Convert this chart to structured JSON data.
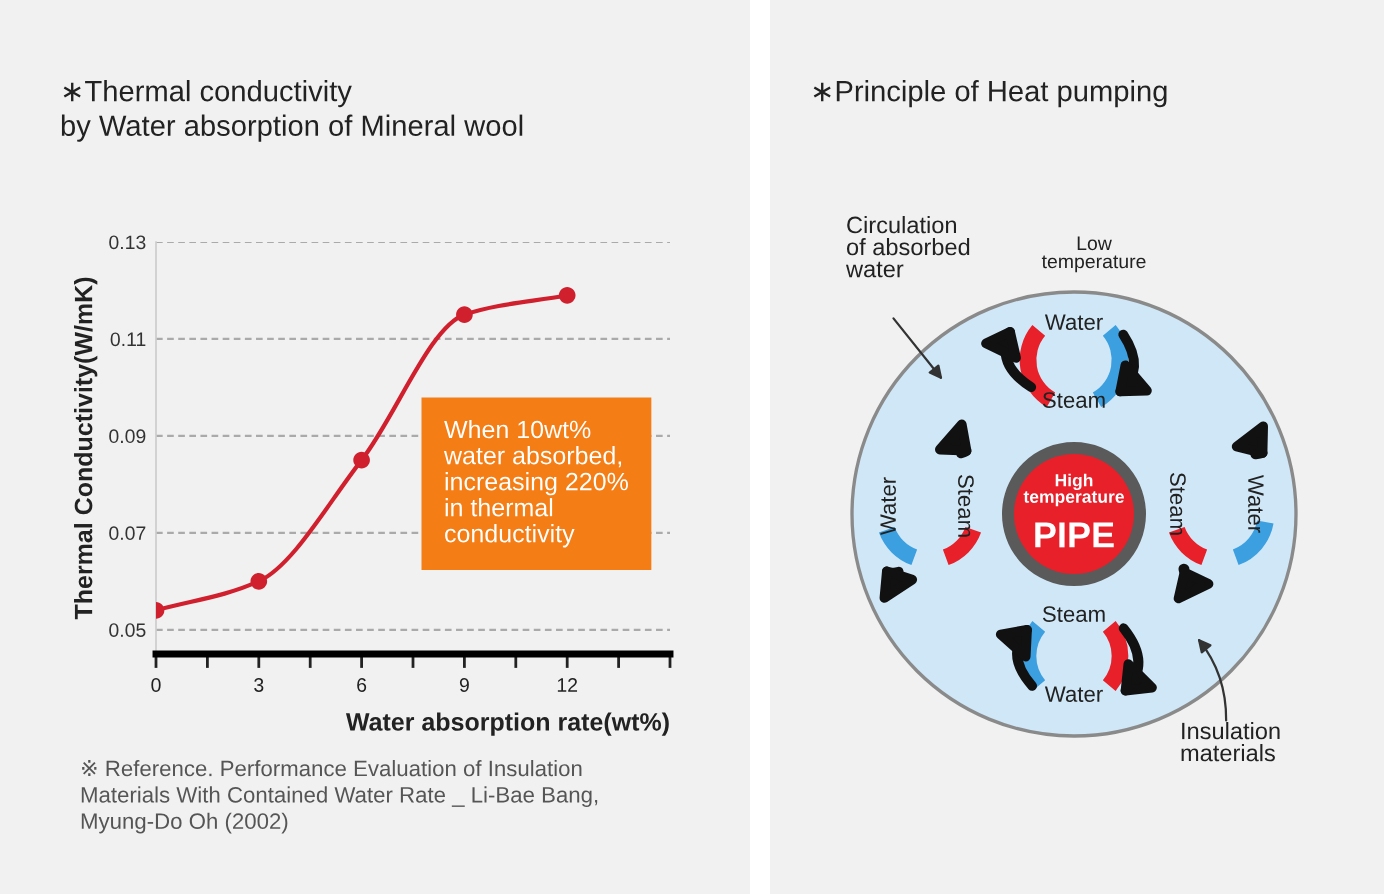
{
  "chart_data": [
    {
      "type": "line",
      "title": "∗Thermal conductivity\nby Water absorption of Mineral wool",
      "xlabel": "Water absorption rate(wt%)",
      "ylabel": "Thermal Conductivity(W/mK)",
      "x": [
        0,
        3,
        6,
        9,
        12
      ],
      "series": [
        {
          "color": "#d0202e",
          "values": [
            0.054,
            0.06,
            0.085,
            0.115,
            0.119
          ]
        }
      ],
      "xlim": [
        0,
        15
      ],
      "xticks": [
        0,
        {
          "value": 1.5,
          "label": null
        },
        3,
        {
          "value": 4.5,
          "label": null
        },
        6,
        {
          "value": 7.5,
          "label": null
        },
        9,
        {
          "value": 10.5,
          "label": null
        },
        12,
        {
          "value": 13.5,
          "label": null
        },
        {
          "value": 15,
          "label": null
        }
      ],
      "ylim": [
        0.045,
        0.13
      ],
      "yticks": [
        0.05,
        0.07,
        0.09,
        0.11,
        0.13
      ],
      "grid": "y",
      "marker": "circle",
      "line_style": "solid",
      "annotations": [
        "When 10wt%\nwater absorbed,\nincreasing 220%\nin thermal\nconductivity",
        "※ Reference. Performance Evaluation of Insulation\nMaterials With Contained Water Rate _ Li-Bae Bang,\nMyung-Do Oh (2002)"
      ]
    },
    {
      "type": "other",
      "title": "∗Principle of Heat pumping",
      "annotations": [
        "Circulation\nof absorbed\nwater",
        "Low\ntemperature",
        "Water",
        "Steam",
        "Water",
        "Steam",
        "Steam",
        "Water",
        "Steam",
        "Water",
        "High\ntemperature",
        "PIPE",
        "Insulation\nmaterials"
      ]
    }
  ]
}
